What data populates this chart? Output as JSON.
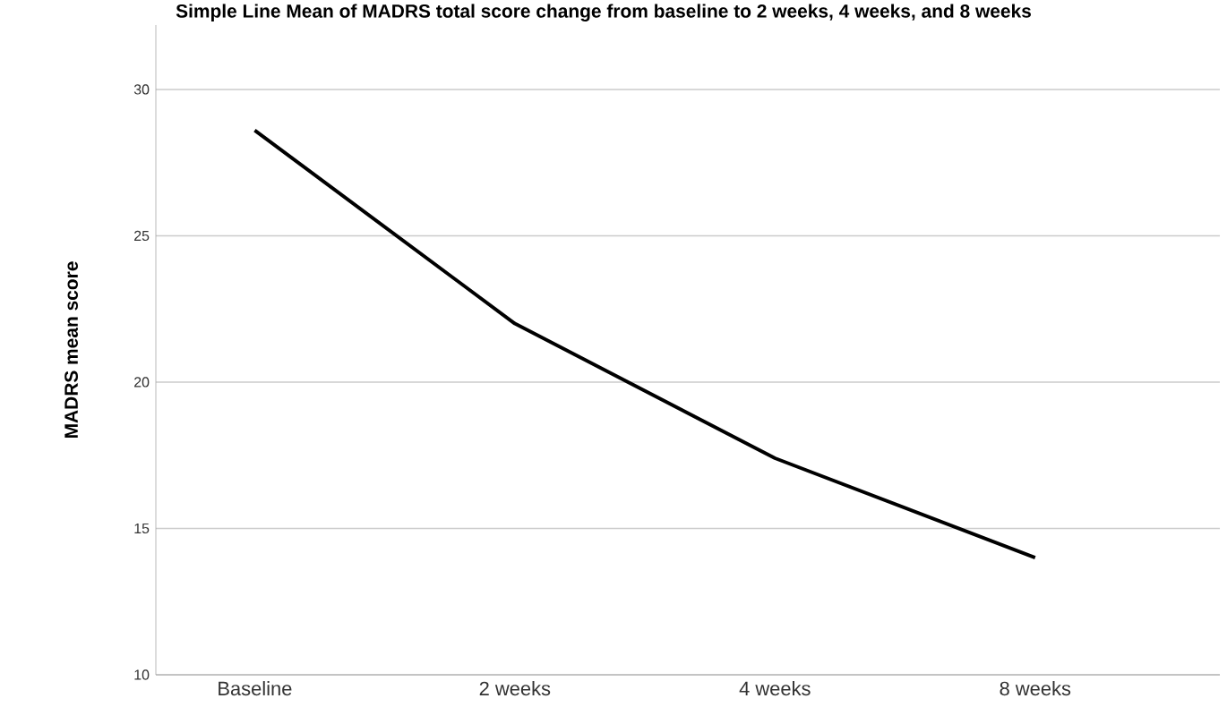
{
  "chart_data": {
    "type": "line",
    "title": "Simple Line Mean of  MADRS total score change from baseline to 2 weeks, 4 weeks, and 8 weeks",
    "ylabel": "MADRS mean score",
    "categories": [
      "Baseline",
      "2 weeks",
      "4 weeks",
      "8 weeks"
    ],
    "series": [
      {
        "color": "#000000",
        "values": [
          28.6,
          22.0,
          17.4,
          14.0
        ]
      }
    ],
    "ylim": [
      10,
      32.2
    ],
    "yticks": [
      10,
      15,
      20,
      25,
      30
    ],
    "grid": "y",
    "marker": "none",
    "line_style": "solid"
  }
}
